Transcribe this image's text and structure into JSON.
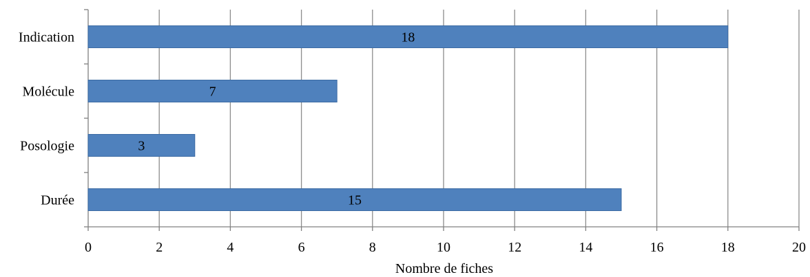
{
  "colors": {
    "bar": "#4f81bd",
    "bar_edge": "#3b6aa3",
    "grid": "#8c8c8c",
    "axis": "#808080",
    "text": "#000000"
  },
  "chart_data": {
    "type": "bar",
    "orientation": "horizontal",
    "categories": [
      "Indication",
      "Molécule",
      "Posologie",
      "Durée"
    ],
    "values": [
      18,
      7,
      3,
      15
    ],
    "data_labels": [
      "18",
      "7",
      "3",
      "15"
    ],
    "title": "",
    "xlabel": "Nombre de fiches",
    "ylabel": "",
    "xlim": [
      0,
      20
    ],
    "x_ticks": [
      0,
      2,
      4,
      6,
      8,
      10,
      12,
      14,
      16,
      18,
      20
    ],
    "x_tick_labels": [
      "0",
      "2",
      "4",
      "6",
      "8",
      "10",
      "12",
      "14",
      "16",
      "18",
      "20"
    ],
    "grid": "vertical",
    "legend": "none"
  }
}
